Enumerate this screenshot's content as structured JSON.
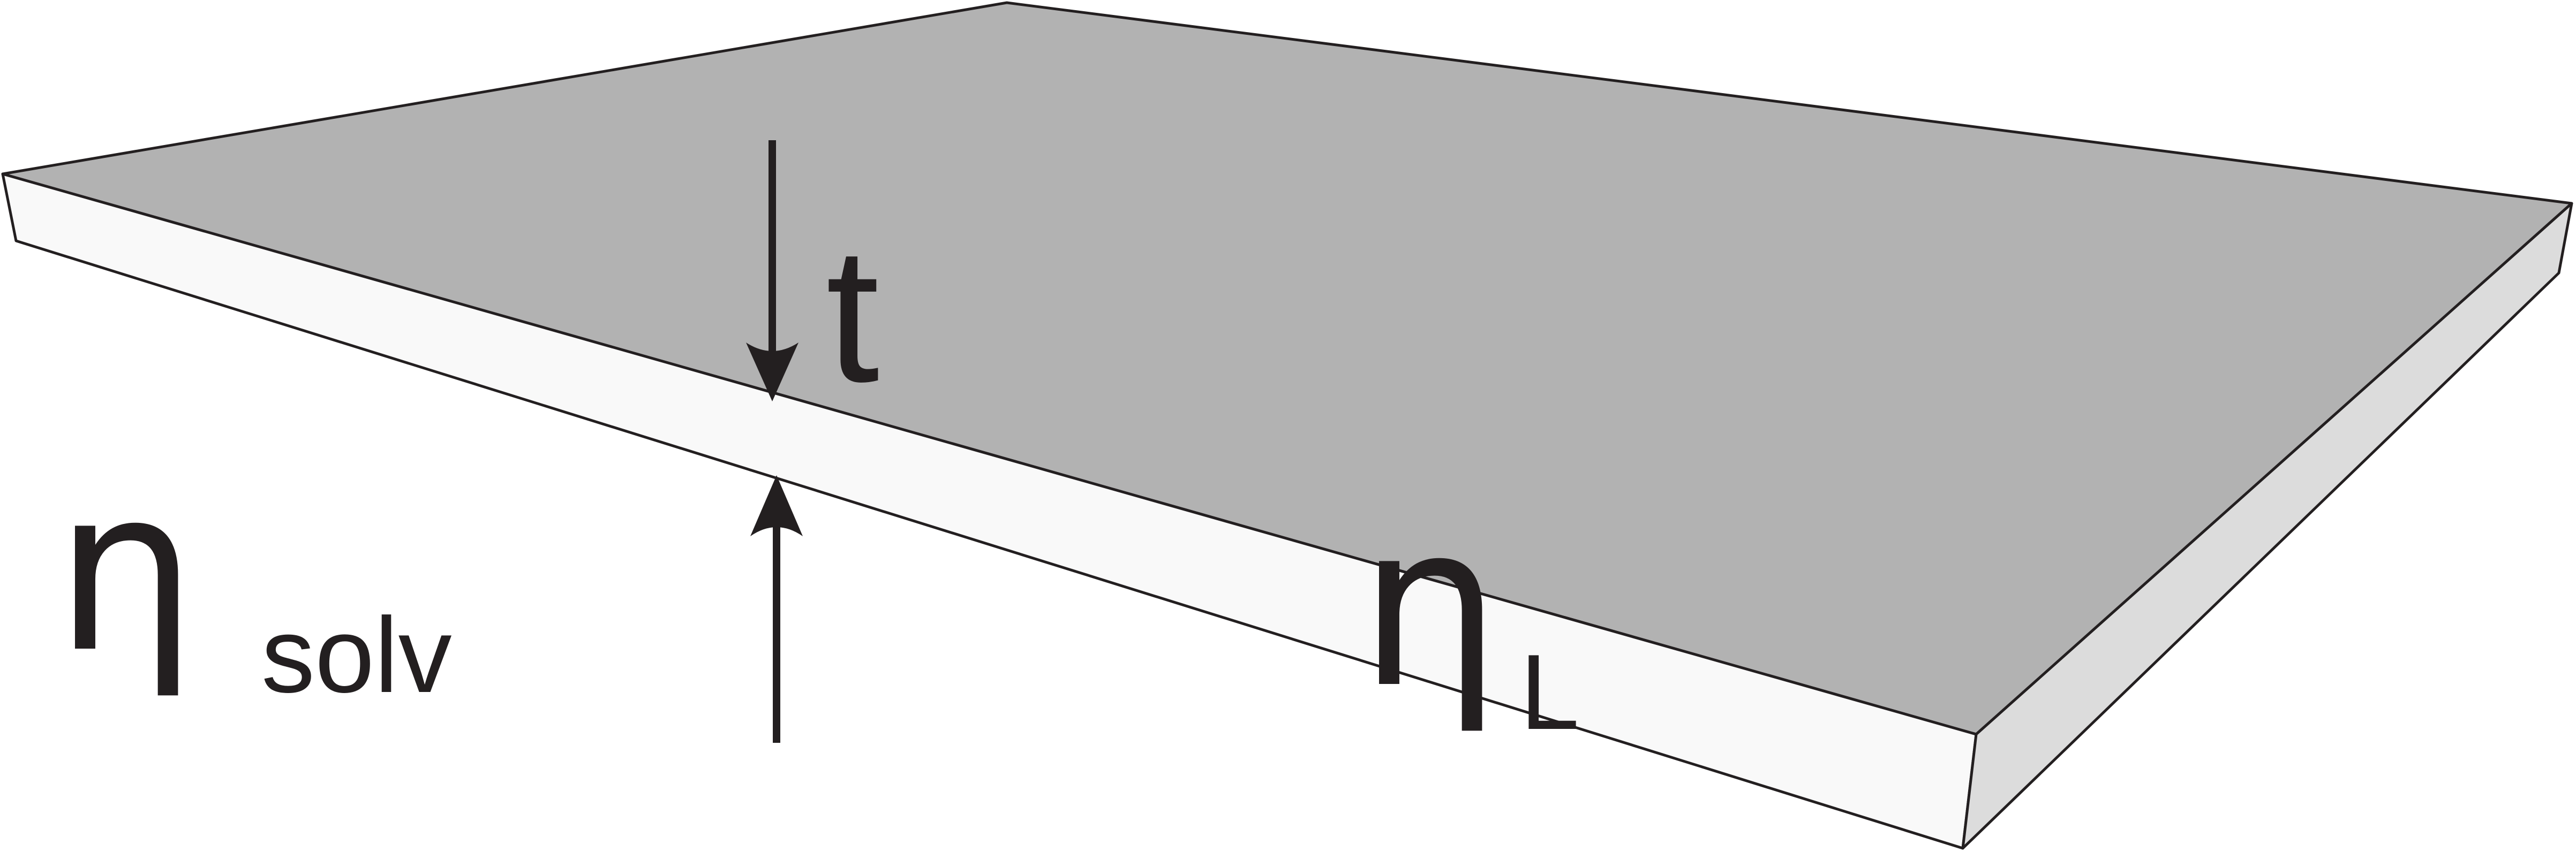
{
  "colors": {
    "top_face": "#b2b2b2",
    "front_face": "#f9f9f9",
    "side_face": "#dcdcdc",
    "ink": "#231f20"
  },
  "labels": {
    "thickness": "t",
    "solvent_symbol": "η",
    "solvent_subscript": "solv",
    "layer_symbol": "η",
    "layer_subscript": "L"
  }
}
